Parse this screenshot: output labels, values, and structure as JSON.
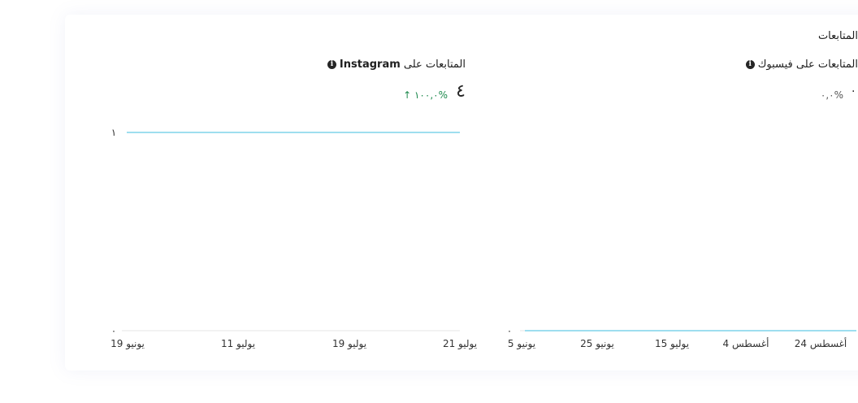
{
  "section_title": "المتابعات",
  "instagram": {
    "title": "المتابعات على",
    "title_bold": "Instagram",
    "value": "٤",
    "change": "↑ ١٠٠,٠%",
    "change_color": "#1e8a4e"
  },
  "facebook": {
    "title": "المتابعات على فيسبوك",
    "value": "٠",
    "change": "٠,٠%"
  },
  "line_color": "#7fd3ea",
  "info_icon": "info-circle-icon",
  "chart_data": [
    {
      "type": "line",
      "name": "instagram-followers",
      "x_ticks": [
        "19 يونيو",
        "11 يوليو",
        "19 يوليو",
        "21 يوليو"
      ],
      "y_ticks": [
        "١",
        "٠"
      ],
      "ylim": [
        0,
        1
      ],
      "values": [
        1,
        1
      ],
      "grid": false
    },
    {
      "type": "line",
      "name": "facebook-followers",
      "x_ticks": [
        "5 يونيو",
        "25 يونيو",
        "15 يوليو",
        "4 أغسطس",
        "24 أغسطس"
      ],
      "y_ticks": [
        "٠"
      ],
      "ylim": [
        0,
        1
      ],
      "values": [
        0,
        0
      ],
      "grid": false
    }
  ]
}
